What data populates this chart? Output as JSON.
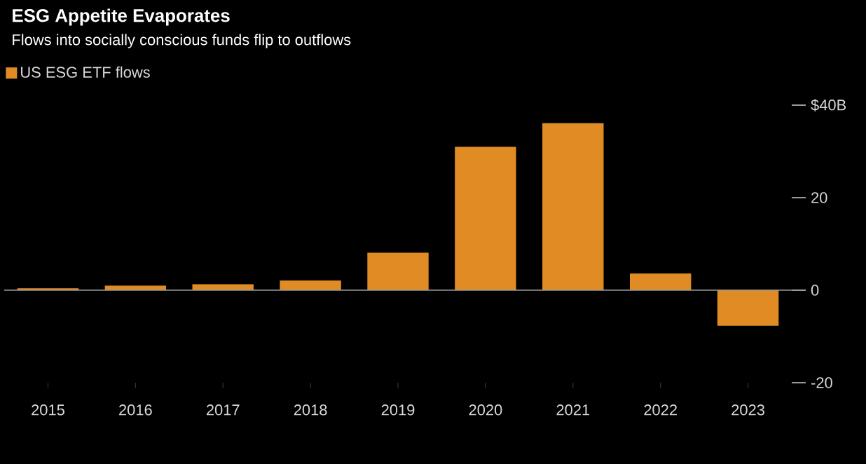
{
  "chart_data": {
    "type": "bar",
    "title": "ESG Appetite Evaporates",
    "subtitle": "Flows into socially conscious funds flip to outflows",
    "categories": [
      "2015",
      "2016",
      "2017",
      "2018",
      "2019",
      "2020",
      "2021",
      "2022",
      "2023"
    ],
    "series": [
      {
        "name": "US ESG ETF flows",
        "color": "#e08b24",
        "values": [
          0.4,
          1.0,
          1.3,
          2.1,
          8.1,
          31.0,
          36.1,
          3.6,
          -7.7
        ]
      }
    ],
    "ylim": [
      -20,
      40
    ],
    "yticks": [
      {
        "value": 40,
        "label": "$40B"
      },
      20,
      0,
      -20
    ],
    "ref_lines": [
      {
        "axis": "y",
        "value": 0,
        "color": "#9a9a9a"
      }
    ],
    "legend": "top left",
    "grid": false
  }
}
